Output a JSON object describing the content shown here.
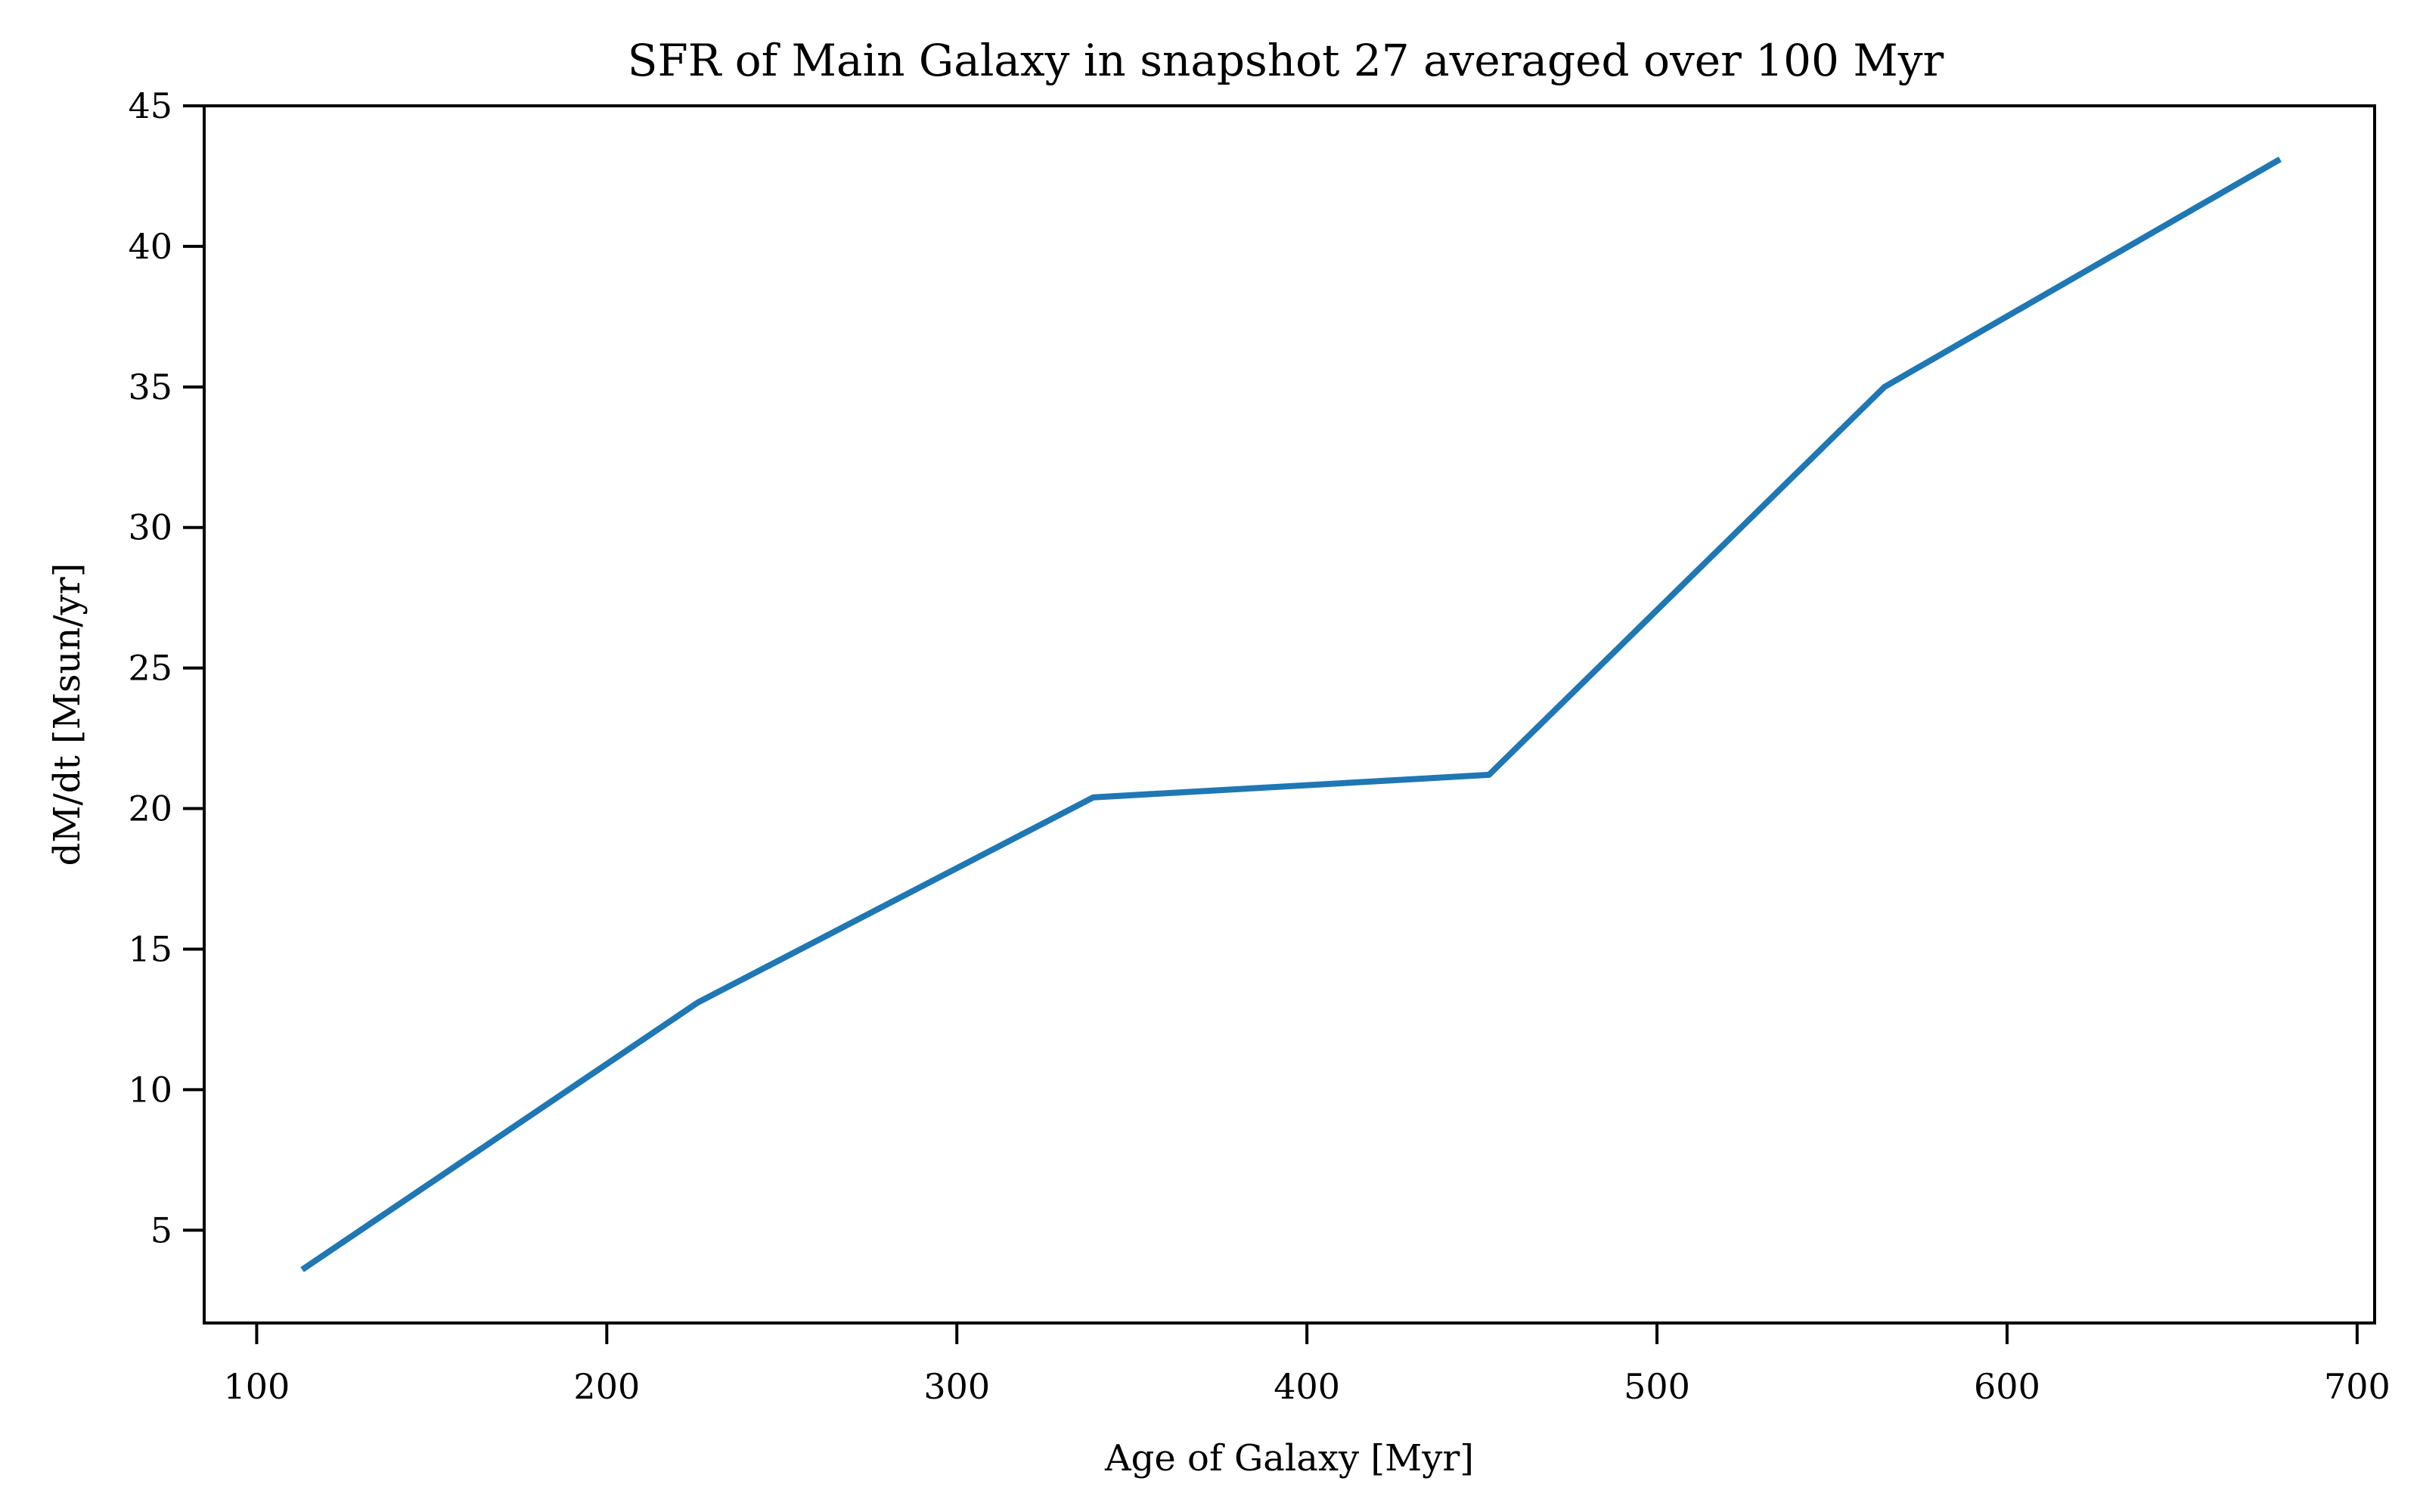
{
  "chart_data": {
    "type": "line",
    "title": "SFR of Main Galaxy in snapshot 27 averaged over 100 Myr",
    "xlabel": "Age of Galaxy [Myr]",
    "ylabel": "dM/dt [Msun/yr]",
    "xlim": [
      85,
      705
    ],
    "ylim": [
      1.7,
      45
    ],
    "xticks": [
      100,
      200,
      300,
      400,
      500,
      600,
      700
    ],
    "yticks": [
      5,
      10,
      15,
      20,
      25,
      30,
      35,
      40,
      45
    ],
    "grid": false,
    "series": [
      {
        "color": "#1f77b4",
        "x": [
          113,
          226,
          339,
          452,
          565,
          678
        ],
        "y": [
          3.6,
          13.1,
          20.4,
          21.2,
          35.0,
          43.1
        ]
      }
    ]
  }
}
